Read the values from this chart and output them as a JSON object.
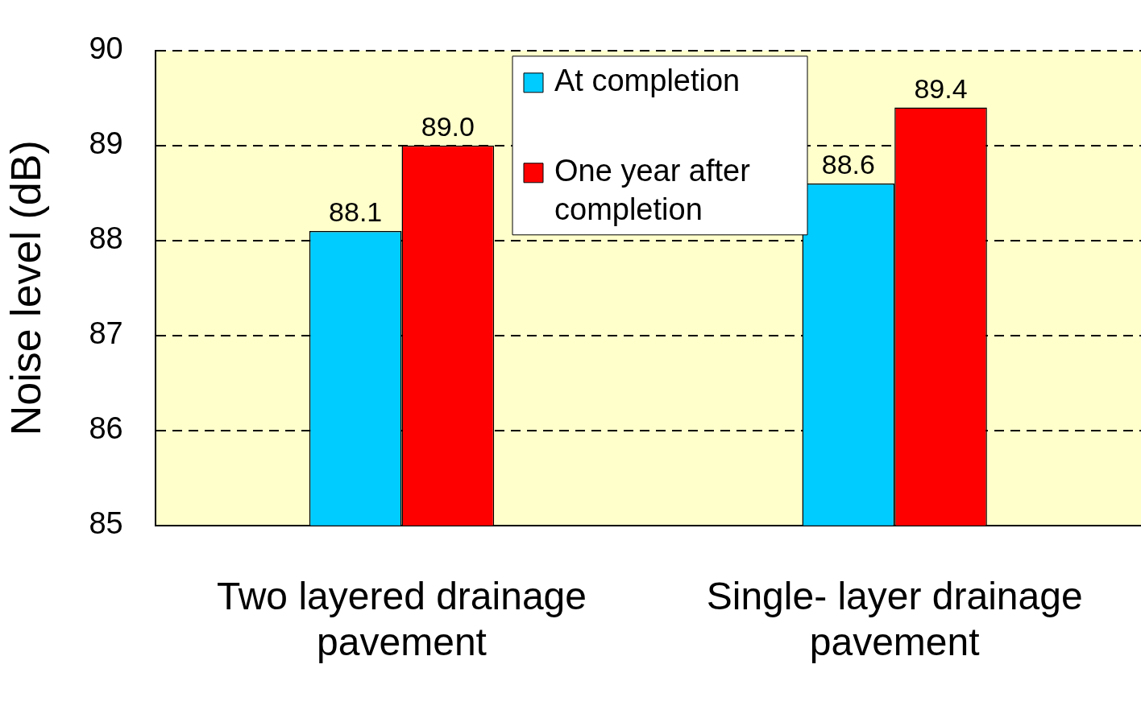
{
  "chart_data": {
    "type": "bar",
    "ylabel": "Noise level (dB)",
    "categories": [
      "Two layered drainage pavement",
      "Single- layer drainage pavement"
    ],
    "series": [
      {
        "name": "At completion",
        "color": "#00ccff",
        "values": [
          88.1,
          88.6
        ],
        "value_labels": [
          "88.1",
          "88.6"
        ]
      },
      {
        "name": "One year after completion",
        "color": "#ff0000",
        "values": [
          89.0,
          89.4
        ],
        "value_labels": [
          "89.0",
          "89.4"
        ]
      }
    ],
    "ylim": [
      85,
      90
    ],
    "yticks": [
      85,
      86,
      87,
      88,
      89,
      90
    ],
    "grid": "y",
    "legend": "top"
  }
}
